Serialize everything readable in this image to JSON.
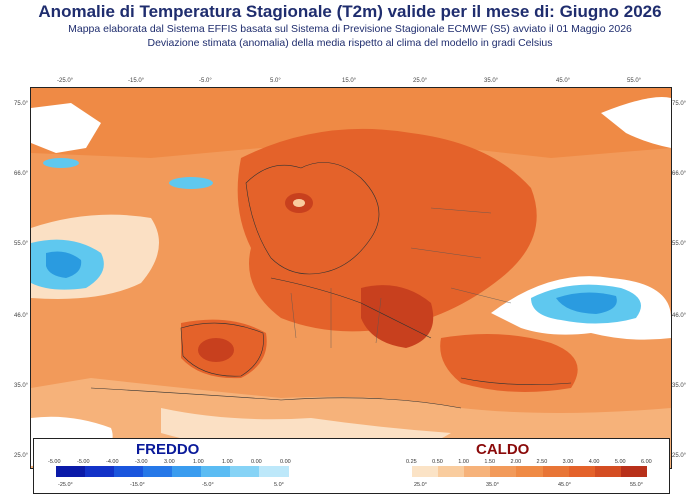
{
  "header": {
    "title": "Anomalie di Temperatura Stagionale (T2m) valide per il mese di: Giugno 2026",
    "subtitle_1": "Mappa elaborata dal Sistema EFFIS basata sul Sistema di Previsione Stagionale ECMWF (S5) avviato il 01 Maggio 2026",
    "subtitle_2": "Deviazione stimata (anomalia) della media rispetto al clima del modello in gradi Celsius"
  },
  "map": {
    "lon_labels_top": [
      "-25.0°",
      "-15.0°",
      "-5.0°",
      "5.0°",
      "15.0°",
      "25.0°",
      "35.0°",
      "45.0°",
      "55.0°"
    ],
    "lat_labels_left": [
      "75.0°",
      "66.0°",
      "55.0°",
      "46.0°",
      "35.0°",
      "25.0°"
    ],
    "lat_labels_right": [
      "75.0°",
      "66.0°",
      "55.0°",
      "46.0°",
      "35.0°",
      "25.0°"
    ],
    "colors": {
      "ocean_warm_light": "#f6b27a",
      "warm_mid": "#ef8a45",
      "warm_strong": "#e4622a",
      "warm_max": "#c8401e",
      "cold_light": "#5fc8ef",
      "cold_mid": "#2a9be0",
      "neutral": "#ffffff",
      "pale": "#fbe0c4"
    }
  },
  "legend": {
    "cold_title": "FREDDO",
    "warm_title": "CALDO",
    "cold_values": [
      "-5.00",
      "-5.00",
      "-4.00",
      "-3.00",
      "3.00",
      "1.00",
      "1.00",
      "0.00",
      "0.00"
    ],
    "warm_values": [
      "0.25",
      "0.50",
      "1.00",
      "1.50",
      "2.00",
      "2.50",
      "3.00",
      "4.00",
      "5.00",
      "6.00"
    ],
    "cold_colors": [
      "#0a1aa8",
      "#1232c8",
      "#1a55dd",
      "#2678e8",
      "#3a9cef",
      "#5bbcf3",
      "#86d3f6",
      "#bde8fa"
    ],
    "warm_colors": [
      "#fbe3c6",
      "#f9cc9e",
      "#f6b27a",
      "#f29a5a",
      "#ef8a45",
      "#e87536",
      "#e4622a",
      "#d44d22",
      "#b8301a"
    ],
    "cold_lon": [
      "-25.0°",
      "-15.0°",
      "-5.0°",
      "5.0°"
    ],
    "warm_lon": [
      "25.0°",
      "35.0°",
      "45.0°",
      "55.0°"
    ]
  }
}
